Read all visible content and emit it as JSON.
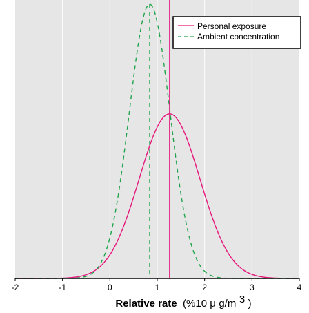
{
  "chart_data": {
    "type": "line",
    "title": "",
    "xlabel": "Relative rate",
    "xlabel_unit_prefix": "(%10 ",
    "xlabel_unit_mu": "μ",
    "xlabel_unit_body": "g/m",
    "xlabel_unit_sup": "3",
    "xlabel_unit_suffix": ")",
    "ylabel": "",
    "xlim": [
      -2,
      4
    ],
    "ylim": [
      0,
      1
    ],
    "x_ticks": [
      -2,
      -1,
      0,
      1,
      2,
      3,
      4
    ],
    "x_tick_labels": [
      "-2",
      "-1",
      "0",
      "1",
      "2",
      "3",
      "4"
    ],
    "grid": "vertical",
    "legend_position": "top-right",
    "series": [
      {
        "name": "Personal exposure",
        "style": "solid",
        "color": "#e5177b",
        "distribution": "normal",
        "mean": 1.26,
        "sd": 0.64,
        "peak_fraction": 0.6,
        "marker_x": 1.26
      },
      {
        "name": "Ambient concentration",
        "style": "dashed",
        "color": "#1fa34a",
        "distribution": "normal",
        "mean": 0.84,
        "sd": 0.43,
        "peak_fraction": 1.0,
        "marker_x": 0.84
      }
    ],
    "colors": {
      "plot_background": "#e6e6e6",
      "gridline": "#ffffff",
      "axis": "#000000"
    }
  }
}
